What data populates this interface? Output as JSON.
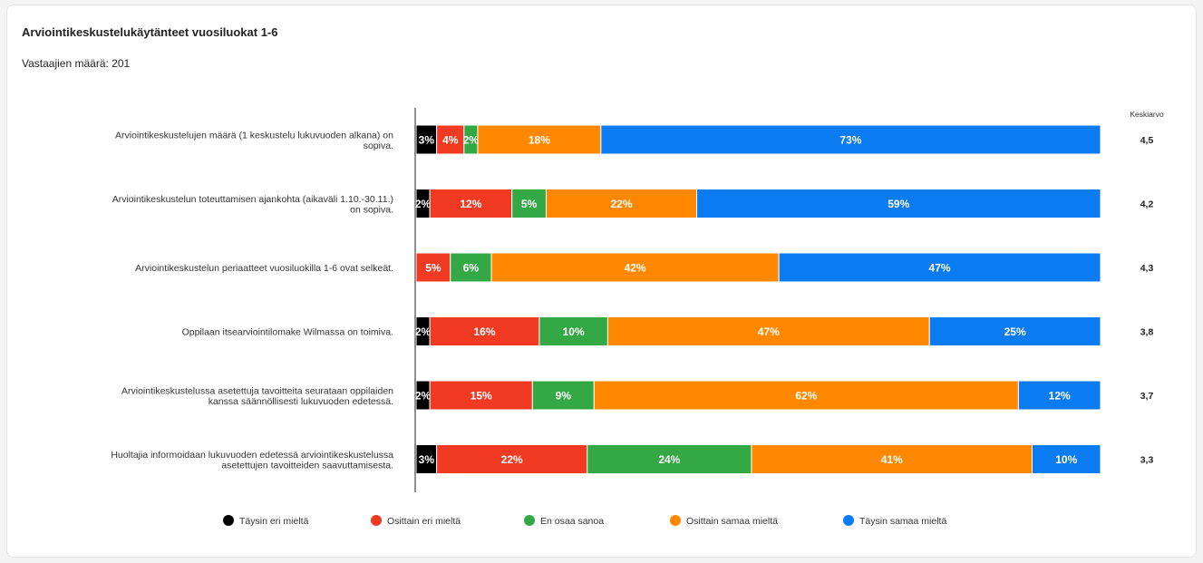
{
  "title": "Arviointikeskustelukäytänteet vuosiluokat 1-6",
  "subtitle": "Vastaajien määrä: 201",
  "chart_data": {
    "type": "bar",
    "orientation": "horizontal",
    "stacked": true,
    "percent": true,
    "categories": [
      [
        "Arviointikeskustelujen määrä (1 keskustelu lukuvuoden alkana) on",
        "sopiva."
      ],
      [
        "Arviointikeskustelun toteuttamisen ajankohta (aikaväli 1.10.-30.11.)",
        "on sopiva."
      ],
      [
        "Arviointikeskustelun periaatteet vuosiluokilla 1-6 ovat selkeät."
      ],
      [
        "Oppilaan itsearviointilomake Wilmassa on toimiva."
      ],
      [
        "Arviointikeskustelussa asetettuja tavoitteita seurataan oppilaiden",
        "kanssa säännöllisesti lukuvuoden edetessä."
      ],
      [
        "Huoltajia informoidaan lukuvuoden edetessä arviointikeskustelussa",
        "asetettujen tavoitteiden saavuttamisesta."
      ]
    ],
    "series": [
      {
        "name": "Täysin eri mieltä",
        "color": "#000000",
        "values": [
          3,
          2,
          0,
          2,
          2,
          3
        ]
      },
      {
        "name": "Osittain eri mieltä",
        "color": "#f03a22",
        "values": [
          4,
          12,
          5,
          16,
          15,
          22
        ]
      },
      {
        "name": "En osaa sanoa",
        "color": "#34a845",
        "values": [
          2,
          5,
          6,
          10,
          9,
          24
        ]
      },
      {
        "name": "Osittain samaa mieltä",
        "color": "#ff8800",
        "values": [
          18,
          22,
          42,
          47,
          62,
          41
        ]
      },
      {
        "name": "Täysin samaa mieltä",
        "color": "#0a7bf0",
        "values": [
          73,
          59,
          47,
          25,
          12,
          10
        ]
      }
    ],
    "average_label": "Keskiarvo",
    "averages": [
      "4,5",
      "4,2",
      "4,3",
      "3,8",
      "3,7",
      "3,3"
    ],
    "legend_position": "bottom",
    "grid": false
  }
}
